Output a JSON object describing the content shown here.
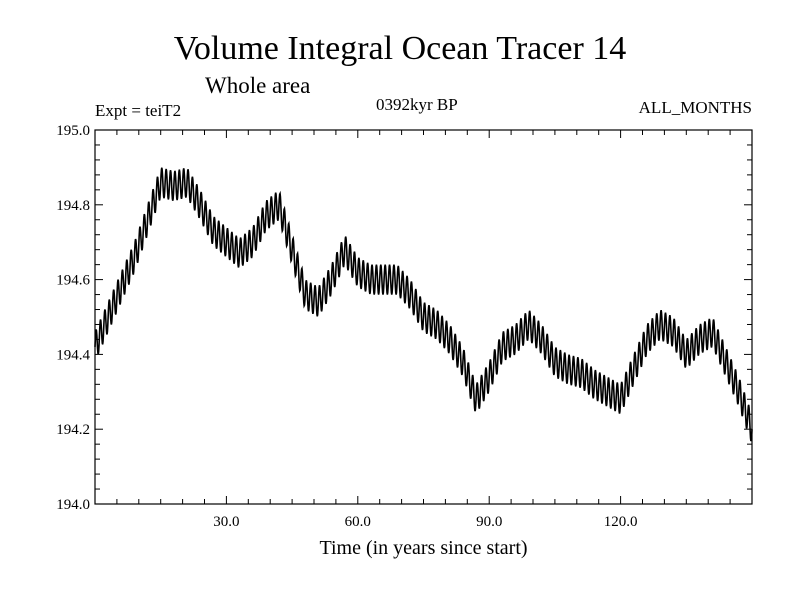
{
  "chart_data": {
    "type": "line",
    "title": "Volume Integral Ocean Tracer 14",
    "subtitle": "Whole area",
    "annotations": {
      "left": "Expt = teiT2",
      "center": "0392kyr BP",
      "right": "ALL_MONTHS"
    },
    "xlabel": "Time (in years since start)",
    "ylabel": "",
    "xlim": [
      0,
      150
    ],
    "ylim": [
      194.0,
      195.0
    ],
    "xticks": [
      30,
      60,
      90,
      120
    ],
    "xtick_labels": [
      "30.0",
      "60.0",
      "90.0",
      "120.0"
    ],
    "yticks": [
      194.0,
      194.2,
      194.4,
      194.6,
      194.8,
      195.0
    ],
    "ytick_labels": [
      "194.0",
      "194.2",
      "194.4",
      "194.6",
      "194.8",
      "195.0"
    ],
    "grid": false,
    "series_trend": {
      "x": [
        0,
        3,
        6,
        9,
        12,
        15,
        18,
        21,
        24,
        27,
        30,
        33,
        36,
        39,
        42,
        45,
        48,
        51,
        54,
        57,
        60,
        63,
        66,
        69,
        72,
        75,
        78,
        81,
        84,
        87,
        90,
        93,
        96,
        99,
        102,
        105,
        108,
        111,
        114,
        117,
        120,
        123,
        126,
        129,
        132,
        135,
        138,
        141,
        144,
        147,
        150
      ],
      "y": [
        194.42,
        194.5,
        194.58,
        194.66,
        194.76,
        194.86,
        194.85,
        194.86,
        194.8,
        194.73,
        194.7,
        194.67,
        194.7,
        194.77,
        194.8,
        194.68,
        194.56,
        194.54,
        194.6,
        194.68,
        194.62,
        194.6,
        194.6,
        194.6,
        194.56,
        194.5,
        194.48,
        194.44,
        194.38,
        194.28,
        194.34,
        194.42,
        194.44,
        194.48,
        194.44,
        194.38,
        194.36,
        194.35,
        194.32,
        194.3,
        194.28,
        194.36,
        194.44,
        194.48,
        194.46,
        194.4,
        194.44,
        194.46,
        194.38,
        194.3,
        194.2
      ]
    },
    "cycle_amplitude": 0.04,
    "cycle_period_years": 1
  }
}
